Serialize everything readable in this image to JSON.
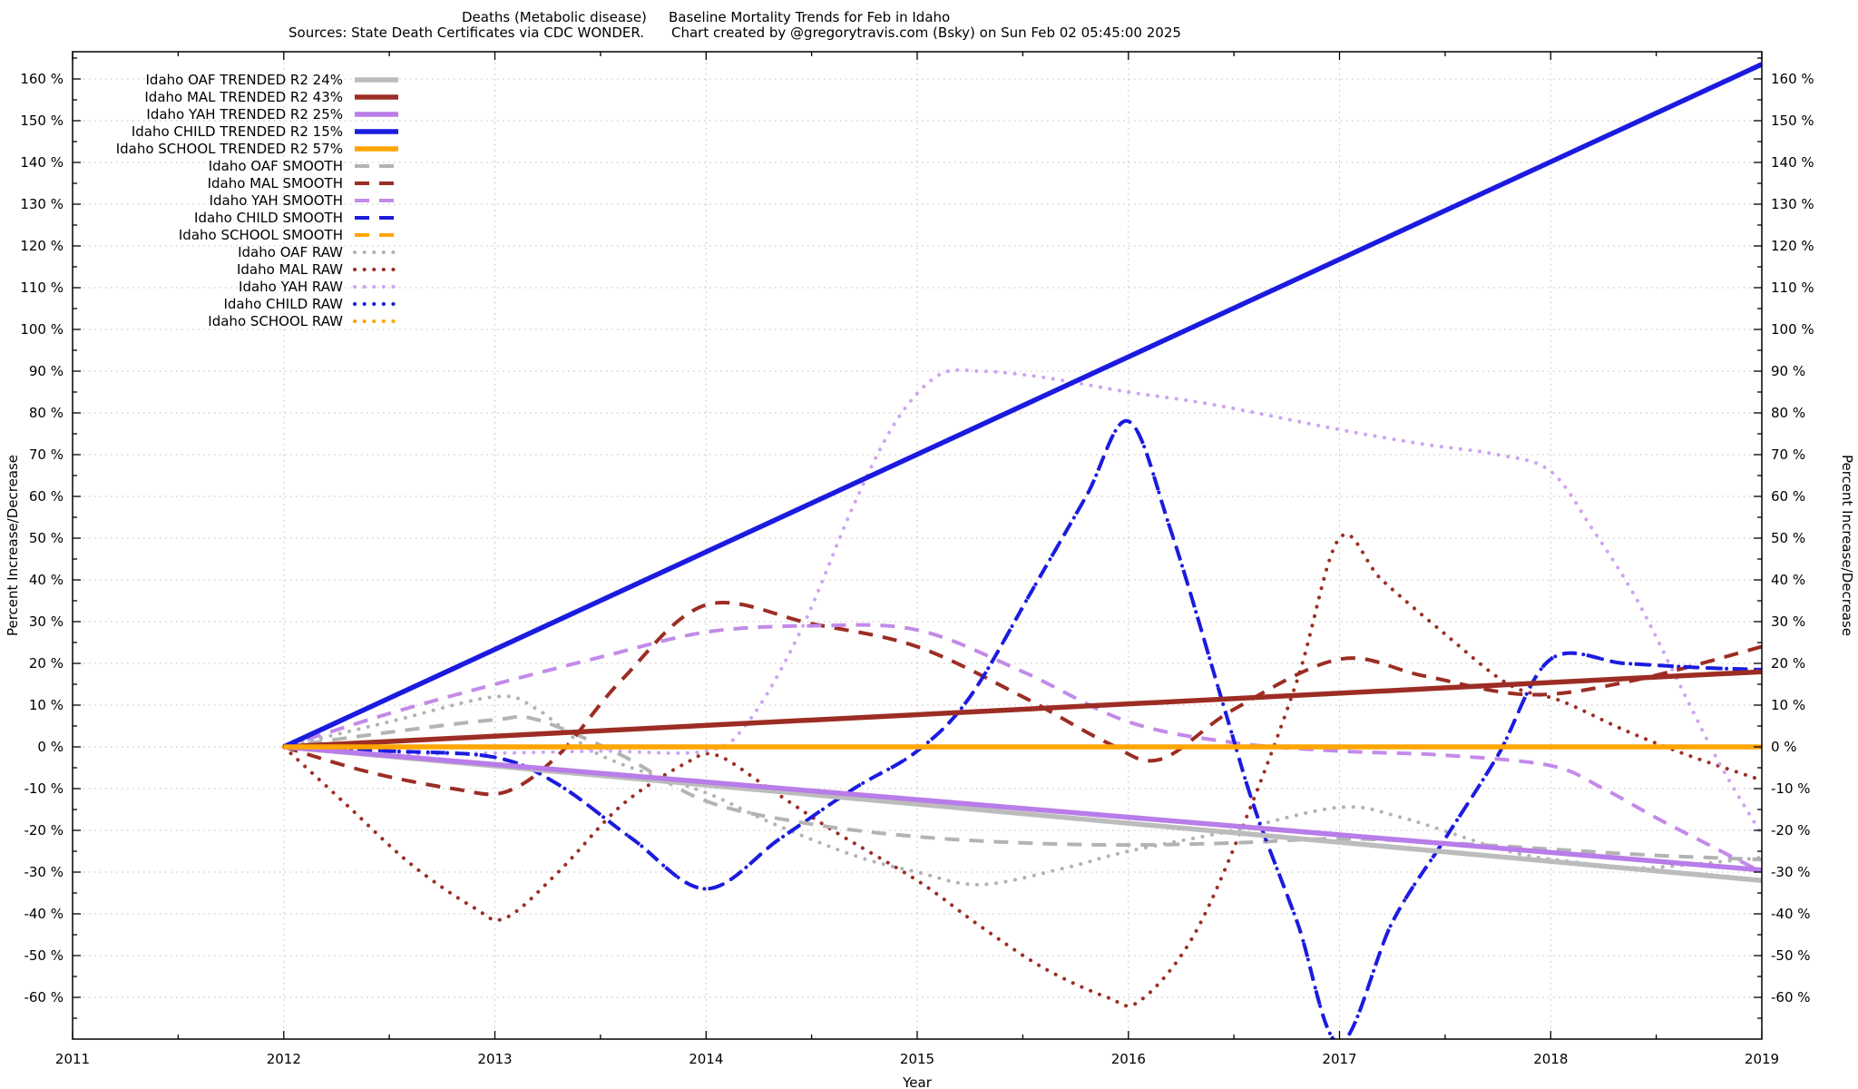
{
  "titles": {
    "line1_left": "Deaths (Metabolic disease)",
    "line1_right": "Baseline Mortality Trends for Feb in Idaho",
    "line2_left": "Sources: State Death Certificates via CDC WONDER.",
    "line2_right": "Chart created by @gregorytravis.com (Bsky) on Sun Feb 02 05:45:00 2025"
  },
  "axes": {
    "x": {
      "label": "Year",
      "min": 2011,
      "max": 2019,
      "ticks": [
        2011,
        2012,
        2013,
        2014,
        2015,
        2016,
        2017,
        2018,
        2019
      ],
      "tick_labels": [
        "2011",
        "2012",
        "2013",
        "2014",
        "2015",
        "2016",
        "2017",
        "2018",
        "2019"
      ]
    },
    "y": {
      "label_left": "Percent Increase/Decrease",
      "label_right": "Percent Increase/Decrease",
      "tick_step": 10,
      "minor_step": 5,
      "ticks": [
        -60,
        -50,
        -40,
        -30,
        -20,
        -10,
        0,
        10,
        20,
        30,
        40,
        50,
        60,
        70,
        80,
        90,
        100,
        110,
        120,
        130,
        140,
        150,
        160
      ],
      "tick_labels": [
        "-60 %",
        "-50 %",
        "-40 %",
        "-30 %",
        "-20 %",
        "-10 %",
        "0 %",
        "10 %",
        "20 %",
        "30 %",
        "40 %",
        "50 %",
        "60 %",
        "70 %",
        "80 %",
        "90 %",
        "100 %",
        "110 %",
        "120 %",
        "130 %",
        "140 %",
        "150 %",
        "160 %"
      ]
    }
  },
  "colors": {
    "background": "#ffffff",
    "grid": "#bdbdbd",
    "border": "#000000",
    "oaf_trended": "#bcbcbc",
    "oaf_line": "#b3b3b3",
    "mal": "#9c2d24",
    "yah_trended": "#b97ce8",
    "yah_smooth": "#c38ae9",
    "yah_raw": "#cfa3f2",
    "child": "#1b1bdf",
    "school": "#ffa500"
  },
  "chart_data": {
    "type": "line",
    "x_unit": "year",
    "y_unit": "percent_change",
    "ylim": [
      -70,
      166
    ],
    "xlim": [
      2011,
      2019
    ],
    "grid": true,
    "legend_position": "top-left",
    "series": [
      {
        "id": "oaf_trended",
        "label": "Idaho OAF TRENDED R2  24%",
        "group": "OAF",
        "style": "trended",
        "color": "#bcbcbc",
        "points": [
          [
            2012,
            0
          ],
          [
            2019,
            -32
          ]
        ]
      },
      {
        "id": "mal_trended",
        "label": "Idaho MAL TRENDED R2  43%",
        "group": "MAL",
        "style": "trended",
        "color": "#9c2d24",
        "points": [
          [
            2012,
            0
          ],
          [
            2019,
            18
          ]
        ]
      },
      {
        "id": "yah_trended",
        "label": "Idaho YAH TRENDED R2  25%",
        "group": "YAH",
        "style": "trended",
        "color": "#b97ce8",
        "points": [
          [
            2012,
            0
          ],
          [
            2019,
            -29.5
          ]
        ]
      },
      {
        "id": "child_trended",
        "label": "Idaho CHILD TRENDED R2  15%",
        "group": "CHILD",
        "style": "trended",
        "color": "#1b1bdf",
        "points": [
          [
            2012,
            0
          ],
          [
            2019,
            163.5
          ]
        ]
      },
      {
        "id": "school_trended",
        "label": "Idaho SCHOOL TRENDED R2  57%",
        "group": "SCHOOL",
        "style": "trended",
        "color": "#ffa500",
        "points": [
          [
            2012,
            0
          ],
          [
            2019,
            0
          ]
        ]
      },
      {
        "id": "oaf_smooth",
        "label": "Idaho OAF SMOOTH",
        "group": "OAF",
        "style": "smooth",
        "color": "#b3b3b3",
        "points": [
          [
            2012,
            0
          ],
          [
            2012.5,
            3.5
          ],
          [
            2013,
            6.5
          ],
          [
            2013.2,
            6.5
          ],
          [
            2013.6,
            -2
          ],
          [
            2014,
            -13
          ],
          [
            2014.5,
            -18.5
          ],
          [
            2015,
            -21.5
          ],
          [
            2015.5,
            -23
          ],
          [
            2016,
            -23.5
          ],
          [
            2016.5,
            -23
          ],
          [
            2017,
            -22
          ],
          [
            2017.5,
            -23
          ],
          [
            2018,
            -24.5
          ],
          [
            2018.5,
            -26
          ],
          [
            2019,
            -27
          ]
        ]
      },
      {
        "id": "mal_smooth",
        "label": "Idaho MAL SMOOTH",
        "group": "MAL",
        "style": "smooth",
        "color": "#9c2d24",
        "points": [
          [
            2012,
            0
          ],
          [
            2012.4,
            -6
          ],
          [
            2012.8,
            -10
          ],
          [
            2013.05,
            -10.8
          ],
          [
            2013.3,
            -2
          ],
          [
            2013.6,
            16
          ],
          [
            2014,
            34
          ],
          [
            2014.5,
            29.5
          ],
          [
            2015,
            24
          ],
          [
            2015.5,
            12
          ],
          [
            2015.9,
            1
          ],
          [
            2016.15,
            -3
          ],
          [
            2016.5,
            9
          ],
          [
            2017,
            21
          ],
          [
            2017.4,
            17
          ],
          [
            2017.9,
            12.5
          ],
          [
            2018.4,
            16
          ],
          [
            2019,
            24
          ]
        ]
      },
      {
        "id": "yah_smooth",
        "label": "Idaho YAH SMOOTH",
        "group": "YAH",
        "style": "smooth",
        "color": "#c38ae9",
        "points": [
          [
            2012,
            0
          ],
          [
            2012.5,
            8
          ],
          [
            2013,
            15
          ],
          [
            2013.5,
            21.5
          ],
          [
            2014,
            27.5
          ],
          [
            2014.5,
            29
          ],
          [
            2015,
            28
          ],
          [
            2015.5,
            18
          ],
          [
            2016,
            6
          ],
          [
            2016.5,
            1
          ],
          [
            2017,
            -1
          ],
          [
            2017.5,
            -2
          ],
          [
            2018,
            -4.5
          ],
          [
            2018.25,
            -10
          ],
          [
            2018.5,
            -17
          ],
          [
            2018.75,
            -23.5
          ],
          [
            2019,
            -30
          ]
        ]
      },
      {
        "id": "child_smooth",
        "label": "Idaho CHILD SMOOTH",
        "group": "CHILD",
        "style": "smooth",
        "color": "#1b1bdf",
        "points": [
          [
            2012,
            0
          ],
          [
            2012.5,
            -1
          ],
          [
            2013,
            -2.5
          ],
          [
            2013.3,
            -9
          ],
          [
            2013.65,
            -22
          ],
          [
            2014,
            -34
          ],
          [
            2014.35,
            -22
          ],
          [
            2014.7,
            -10
          ],
          [
            2015,
            -1
          ],
          [
            2015.25,
            12
          ],
          [
            2015.55,
            38
          ],
          [
            2015.8,
            60
          ],
          [
            2016,
            78
          ],
          [
            2016.2,
            52
          ],
          [
            2016.45,
            10
          ],
          [
            2016.6,
            -15
          ],
          [
            2016.8,
            -42
          ],
          [
            2017,
            -71
          ],
          [
            2017.25,
            -42
          ],
          [
            2017.5,
            -22
          ],
          [
            2017.75,
            -2
          ],
          [
            2018,
            21
          ],
          [
            2018.35,
            20
          ],
          [
            2018.7,
            19
          ],
          [
            2019,
            18.5
          ]
        ]
      },
      {
        "id": "school_smooth",
        "label": "Idaho SCHOOL SMOOTH",
        "group": "SCHOOL",
        "style": "smooth",
        "color": "#ffa500",
        "points": [
          [
            2012,
            0
          ],
          [
            2019,
            0
          ]
        ]
      },
      {
        "id": "oaf_raw",
        "label": "Idaho OAF RAW",
        "group": "OAF",
        "style": "raw",
        "color": "#b3b3b3",
        "points": [
          [
            2012,
            0
          ],
          [
            2012.5,
            6
          ],
          [
            2013,
            12
          ],
          [
            2013.2,
            9
          ],
          [
            2013.5,
            -2
          ],
          [
            2014,
            -11
          ],
          [
            2014.3,
            -18
          ],
          [
            2014.7,
            -26
          ],
          [
            2015,
            -30
          ],
          [
            2015.3,
            -33
          ],
          [
            2015.7,
            -29
          ],
          [
            2016,
            -25
          ],
          [
            2016.5,
            -20
          ],
          [
            2017,
            -14.5
          ],
          [
            2017.3,
            -17
          ],
          [
            2017.8,
            -25
          ],
          [
            2018.1,
            -27.5
          ],
          [
            2018.4,
            -29
          ],
          [
            2018.7,
            -28
          ],
          [
            2019,
            -26.5
          ]
        ]
      },
      {
        "id": "mal_raw",
        "label": "Idaho MAL RAW",
        "group": "MAL",
        "style": "raw",
        "color": "#9c2d24",
        "points": [
          [
            2012,
            0
          ],
          [
            2012.3,
            -14
          ],
          [
            2012.6,
            -28
          ],
          [
            2012.9,
            -38.5
          ],
          [
            2013.05,
            -41
          ],
          [
            2013.3,
            -30
          ],
          [
            2013.6,
            -14
          ],
          [
            2013.9,
            -4
          ],
          [
            2014.05,
            -2
          ],
          [
            2014.3,
            -10
          ],
          [
            2014.6,
            -20
          ],
          [
            2015,
            -32
          ],
          [
            2015.3,
            -43
          ],
          [
            2015.6,
            -53
          ],
          [
            2015.9,
            -60
          ],
          [
            2016.05,
            -61
          ],
          [
            2016.3,
            -46
          ],
          [
            2016.55,
            -18
          ],
          [
            2016.8,
            16
          ],
          [
            2017,
            50
          ],
          [
            2017.2,
            40
          ],
          [
            2017.5,
            27
          ],
          [
            2017.8,
            15
          ],
          [
            2018.05,
            11
          ],
          [
            2018.35,
            4
          ],
          [
            2018.65,
            -2
          ],
          [
            2019,
            -8
          ]
        ]
      },
      {
        "id": "yah_raw",
        "label": "Idaho YAH RAW",
        "group": "YAH",
        "style": "raw",
        "color": "#cfa3f2",
        "points": [
          [
            2012,
            0
          ],
          [
            2012.5,
            -1.5
          ],
          [
            2013,
            -1.5
          ],
          [
            2013.5,
            -1
          ],
          [
            2014,
            -1
          ],
          [
            2014.2,
            6
          ],
          [
            2014.45,
            28
          ],
          [
            2014.7,
            58
          ],
          [
            2014.9,
            78
          ],
          [
            2015.1,
            89
          ],
          [
            2015.3,
            90
          ],
          [
            2015.6,
            88.5
          ],
          [
            2016,
            85
          ],
          [
            2016.4,
            82
          ],
          [
            2017,
            76
          ],
          [
            2017.4,
            72.5
          ],
          [
            2017.75,
            70
          ],
          [
            2018,
            66
          ],
          [
            2018.2,
            52
          ],
          [
            2018.4,
            36
          ],
          [
            2018.6,
            16
          ],
          [
            2018.8,
            -4
          ],
          [
            2019,
            -21
          ]
        ]
      },
      {
        "id": "child_raw",
        "label": "Idaho CHILD RAW",
        "group": "CHILD",
        "style": "raw",
        "color": "#1b1bdf",
        "points": [
          [
            2012,
            0
          ],
          [
            2012.5,
            -1
          ],
          [
            2013,
            -2.5
          ],
          [
            2013.3,
            -9
          ],
          [
            2013.65,
            -22
          ],
          [
            2014,
            -34
          ],
          [
            2014.35,
            -22
          ],
          [
            2014.7,
            -10
          ],
          [
            2015,
            -1
          ],
          [
            2015.25,
            12
          ],
          [
            2015.55,
            38
          ],
          [
            2015.8,
            60
          ],
          [
            2016,
            78
          ],
          [
            2016.2,
            52
          ],
          [
            2016.45,
            10
          ],
          [
            2016.6,
            -15
          ],
          [
            2016.8,
            -42
          ],
          [
            2017,
            -71
          ],
          [
            2017.25,
            -42
          ],
          [
            2017.5,
            -22
          ],
          [
            2017.75,
            -2
          ],
          [
            2018,
            21
          ],
          [
            2018.35,
            20
          ],
          [
            2018.7,
            19
          ],
          [
            2019,
            18.5
          ]
        ]
      },
      {
        "id": "school_raw",
        "label": "Idaho SCHOOL RAW",
        "group": "SCHOOL",
        "style": "raw",
        "color": "#ffa500",
        "points": [
          [
            2012,
            0
          ],
          [
            2019,
            0
          ]
        ]
      }
    ]
  }
}
